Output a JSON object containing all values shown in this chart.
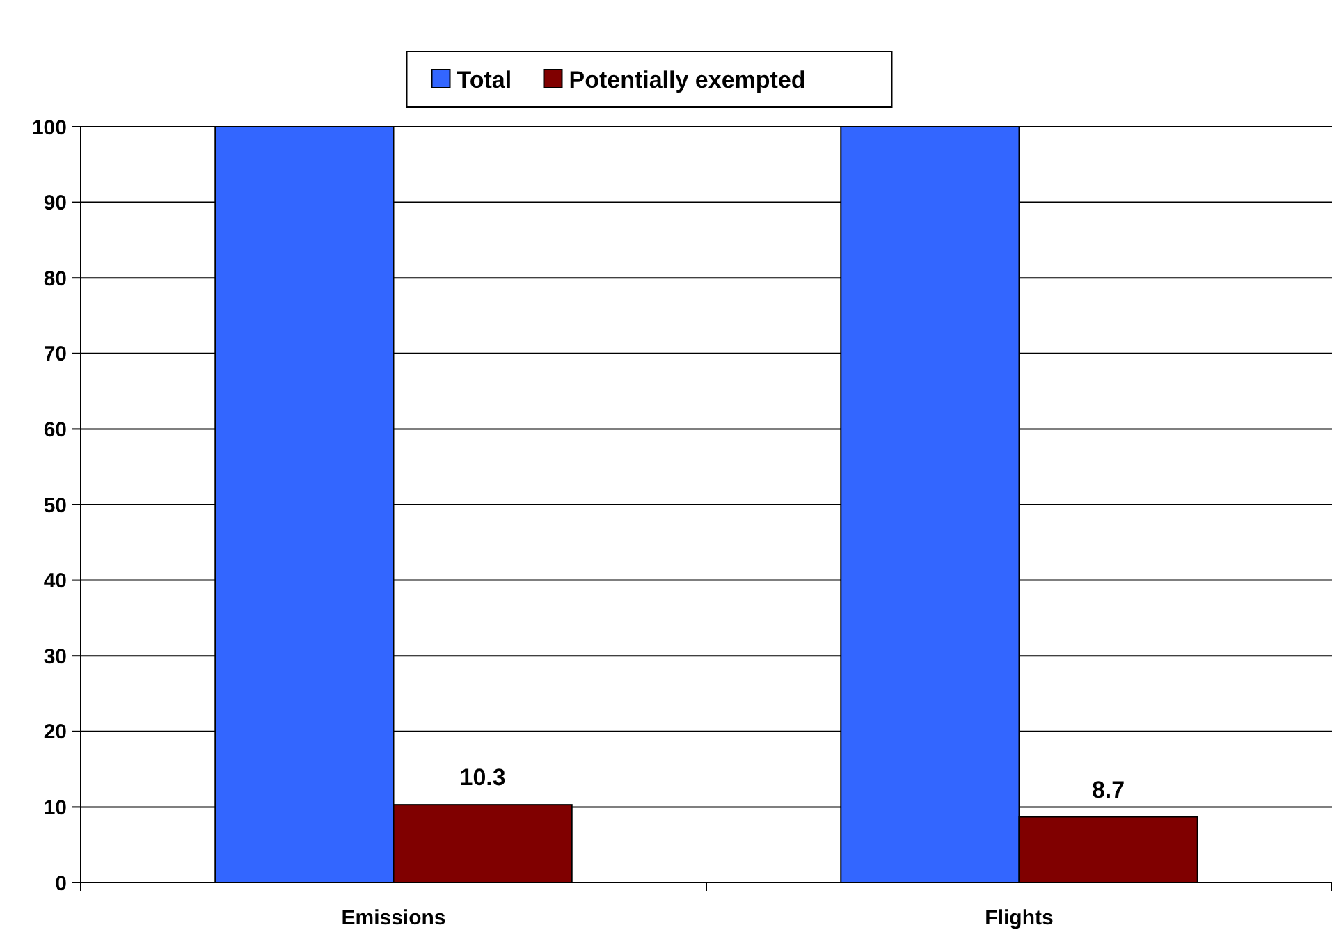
{
  "chart_data": {
    "type": "bar",
    "categories": [
      "Emissions",
      "Flights"
    ],
    "series": [
      {
        "name": "Total",
        "color": "#3366ff",
        "values": [
          100,
          100
        ]
      },
      {
        "name": "Potentially exempted",
        "color": "#800000",
        "values": [
          10.3,
          8.7
        ],
        "value_labels": [
          "10.3",
          "8.7"
        ]
      }
    ],
    "ylim": [
      0,
      100
    ],
    "yticks": [
      0,
      10,
      20,
      30,
      40,
      50,
      60,
      70,
      80,
      90,
      100
    ],
    "grid": "y",
    "legend": "top"
  }
}
